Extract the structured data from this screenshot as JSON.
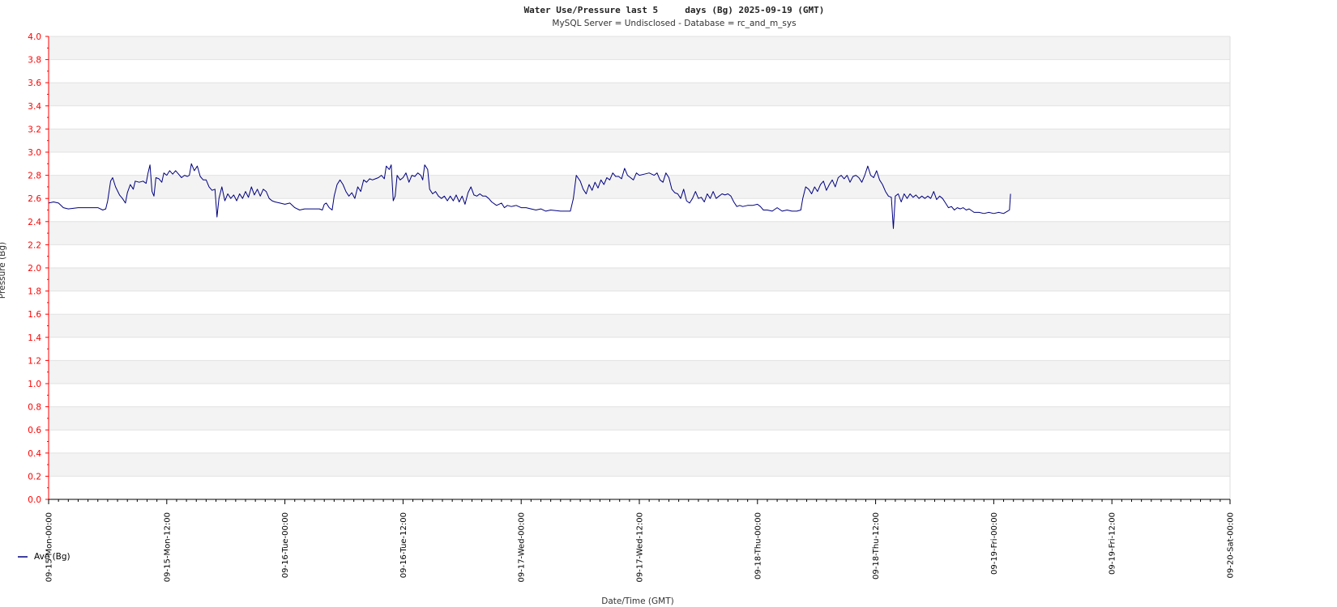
{
  "chart_data": {
    "type": "line",
    "title": "Water Use/Pressure last 5     days (Bg) 2025-09-19 (GMT)",
    "subtitle": "MySQL Server = Undisclosed - Database = rc_and_m_sys",
    "xlabel": "Date/Time (GMT)",
    "ylabel": "Pressure (Bg)",
    "ylim": [
      0,
      4
    ],
    "yticks": [
      "0.0",
      "0.2",
      "0.4",
      "0.6",
      "0.8",
      "1.0",
      "1.2",
      "1.4",
      "1.6",
      "1.8",
      "2.0",
      "2.2",
      "2.4",
      "2.6",
      "2.8",
      "3.0",
      "3.2",
      "3.4",
      "3.6",
      "3.8",
      "4.0"
    ],
    "x_range_hours": [
      0,
      120
    ],
    "xticks": [
      {
        "hour": 0,
        "label": "09-15-Mon-00:00"
      },
      {
        "hour": 12,
        "label": "09-15-Mon-12:00"
      },
      {
        "hour": 24,
        "label": "09-16-Tue-00:00"
      },
      {
        "hour": 36,
        "label": "09-16-Tue-12:00"
      },
      {
        "hour": 48,
        "label": "09-17-Wed-00:00"
      },
      {
        "hour": 60,
        "label": "09-17-Wed-12:00"
      },
      {
        "hour": 72,
        "label": "09-18-Thu-00:00"
      },
      {
        "hour": 84,
        "label": "09-18-Thu-12:00"
      },
      {
        "hour": 96,
        "label": "09-19-Fri-00:00"
      },
      {
        "hour": 108,
        "label": "09-19-Fri-12:00"
      },
      {
        "hour": 120,
        "label": "09-20-Sat-00:00"
      }
    ],
    "grid": true,
    "legend_position": "bottom-left",
    "series": [
      {
        "name": "Ave (Bg)",
        "color": "#000080",
        "points": [
          [
            0.0,
            2.56
          ],
          [
            0.5,
            2.57
          ],
          [
            1.0,
            2.56
          ],
          [
            1.5,
            2.52
          ],
          [
            2.0,
            2.51
          ],
          [
            3.0,
            2.52
          ],
          [
            4.0,
            2.52
          ],
          [
            5.0,
            2.52
          ],
          [
            5.5,
            2.5
          ],
          [
            5.8,
            2.51
          ],
          [
            6.0,
            2.58
          ],
          [
            6.3,
            2.75
          ],
          [
            6.5,
            2.78
          ],
          [
            6.8,
            2.7
          ],
          [
            7.2,
            2.63
          ],
          [
            7.5,
            2.6
          ],
          [
            7.8,
            2.56
          ],
          [
            8.0,
            2.65
          ],
          [
            8.3,
            2.72
          ],
          [
            8.6,
            2.68
          ],
          [
            8.8,
            2.75
          ],
          [
            9.2,
            2.74
          ],
          [
            9.6,
            2.75
          ],
          [
            9.9,
            2.73
          ],
          [
            10.1,
            2.82
          ],
          [
            10.3,
            2.89
          ],
          [
            10.5,
            2.66
          ],
          [
            10.7,
            2.62
          ],
          [
            10.9,
            2.78
          ],
          [
            11.2,
            2.77
          ],
          [
            11.5,
            2.74
          ],
          [
            11.7,
            2.82
          ],
          [
            12.0,
            2.8
          ],
          [
            12.3,
            2.84
          ],
          [
            12.6,
            2.81
          ],
          [
            12.9,
            2.84
          ],
          [
            13.2,
            2.81
          ],
          [
            13.5,
            2.78
          ],
          [
            13.8,
            2.8
          ],
          [
            14.1,
            2.79
          ],
          [
            14.3,
            2.8
          ],
          [
            14.5,
            2.9
          ],
          [
            14.8,
            2.84
          ],
          [
            15.1,
            2.88
          ],
          [
            15.4,
            2.79
          ],
          [
            15.7,
            2.76
          ],
          [
            16.0,
            2.76
          ],
          [
            16.3,
            2.7
          ],
          [
            16.6,
            2.67
          ],
          [
            16.9,
            2.68
          ],
          [
            17.1,
            2.44
          ],
          [
            17.3,
            2.6
          ],
          [
            17.6,
            2.7
          ],
          [
            17.9,
            2.58
          ],
          [
            18.2,
            2.64
          ],
          [
            18.5,
            2.6
          ],
          [
            18.8,
            2.63
          ],
          [
            19.1,
            2.58
          ],
          [
            19.4,
            2.64
          ],
          [
            19.7,
            2.6
          ],
          [
            20.0,
            2.66
          ],
          [
            20.3,
            2.61
          ],
          [
            20.6,
            2.7
          ],
          [
            20.9,
            2.63
          ],
          [
            21.2,
            2.68
          ],
          [
            21.5,
            2.62
          ],
          [
            21.8,
            2.68
          ],
          [
            22.1,
            2.66
          ],
          [
            22.4,
            2.6
          ],
          [
            22.7,
            2.58
          ],
          [
            23.0,
            2.57
          ],
          [
            23.5,
            2.56
          ],
          [
            24.0,
            2.55
          ],
          [
            24.5,
            2.56
          ],
          [
            25.0,
            2.52
          ],
          [
            25.5,
            2.5
          ],
          [
            26.0,
            2.51
          ],
          [
            27.0,
            2.51
          ],
          [
            27.5,
            2.51
          ],
          [
            27.8,
            2.5
          ],
          [
            28.0,
            2.55
          ],
          [
            28.2,
            2.56
          ],
          [
            28.5,
            2.52
          ],
          [
            28.8,
            2.5
          ],
          [
            29.0,
            2.62
          ],
          [
            29.3,
            2.72
          ],
          [
            29.6,
            2.76
          ],
          [
            29.9,
            2.72
          ],
          [
            30.2,
            2.66
          ],
          [
            30.5,
            2.62
          ],
          [
            30.8,
            2.65
          ],
          [
            31.1,
            2.6
          ],
          [
            31.4,
            2.7
          ],
          [
            31.7,
            2.66
          ],
          [
            32.0,
            2.76
          ],
          [
            32.3,
            2.74
          ],
          [
            32.6,
            2.77
          ],
          [
            32.9,
            2.76
          ],
          [
            33.2,
            2.77
          ],
          [
            33.5,
            2.78
          ],
          [
            33.8,
            2.8
          ],
          [
            34.1,
            2.77
          ],
          [
            34.3,
            2.88
          ],
          [
            34.6,
            2.85
          ],
          [
            34.8,
            2.89
          ],
          [
            35.0,
            2.58
          ],
          [
            35.2,
            2.62
          ],
          [
            35.4,
            2.8
          ],
          [
            35.7,
            2.76
          ],
          [
            36.0,
            2.78
          ],
          [
            36.3,
            2.82
          ],
          [
            36.6,
            2.74
          ],
          [
            36.9,
            2.8
          ],
          [
            37.2,
            2.79
          ],
          [
            37.5,
            2.82
          ],
          [
            37.8,
            2.8
          ],
          [
            38.0,
            2.76
          ],
          [
            38.2,
            2.89
          ],
          [
            38.5,
            2.85
          ],
          [
            38.7,
            2.68
          ],
          [
            39.0,
            2.64
          ],
          [
            39.3,
            2.66
          ],
          [
            39.6,
            2.62
          ],
          [
            39.9,
            2.6
          ],
          [
            40.2,
            2.62
          ],
          [
            40.5,
            2.58
          ],
          [
            40.8,
            2.62
          ],
          [
            41.1,
            2.58
          ],
          [
            41.4,
            2.63
          ],
          [
            41.7,
            2.57
          ],
          [
            42.0,
            2.62
          ],
          [
            42.3,
            2.55
          ],
          [
            42.6,
            2.65
          ],
          [
            42.9,
            2.7
          ],
          [
            43.2,
            2.63
          ],
          [
            43.5,
            2.62
          ],
          [
            43.8,
            2.64
          ],
          [
            44.1,
            2.62
          ],
          [
            44.4,
            2.62
          ],
          [
            44.7,
            2.6
          ],
          [
            45.0,
            2.57
          ],
          [
            45.5,
            2.54
          ],
          [
            46.0,
            2.56
          ],
          [
            46.3,
            2.52
          ],
          [
            46.6,
            2.54
          ],
          [
            47.0,
            2.53
          ],
          [
            47.5,
            2.54
          ],
          [
            48.0,
            2.52
          ],
          [
            48.5,
            2.52
          ],
          [
            49.0,
            2.51
          ],
          [
            49.5,
            2.5
          ],
          [
            50.0,
            2.51
          ],
          [
            50.5,
            2.49
          ],
          [
            51.0,
            2.5
          ],
          [
            52.0,
            2.49
          ],
          [
            53.0,
            2.49
          ],
          [
            53.3,
            2.6
          ],
          [
            53.6,
            2.8
          ],
          [
            54.0,
            2.75
          ],
          [
            54.3,
            2.68
          ],
          [
            54.6,
            2.64
          ],
          [
            54.9,
            2.72
          ],
          [
            55.2,
            2.67
          ],
          [
            55.5,
            2.74
          ],
          [
            55.8,
            2.69
          ],
          [
            56.1,
            2.76
          ],
          [
            56.4,
            2.72
          ],
          [
            56.7,
            2.78
          ],
          [
            57.0,
            2.76
          ],
          [
            57.3,
            2.82
          ],
          [
            57.6,
            2.79
          ],
          [
            57.9,
            2.79
          ],
          [
            58.2,
            2.77
          ],
          [
            58.5,
            2.86
          ],
          [
            58.8,
            2.8
          ],
          [
            59.1,
            2.78
          ],
          [
            59.4,
            2.76
          ],
          [
            59.7,
            2.82
          ],
          [
            60.0,
            2.8
          ],
          [
            60.5,
            2.81
          ],
          [
            61.0,
            2.82
          ],
          [
            61.5,
            2.8
          ],
          [
            61.8,
            2.82
          ],
          [
            62.1,
            2.76
          ],
          [
            62.4,
            2.74
          ],
          [
            62.7,
            2.82
          ],
          [
            63.0,
            2.78
          ],
          [
            63.3,
            2.68
          ],
          [
            63.6,
            2.65
          ],
          [
            63.9,
            2.64
          ],
          [
            64.2,
            2.6
          ],
          [
            64.5,
            2.68
          ],
          [
            64.8,
            2.58
          ],
          [
            65.1,
            2.56
          ],
          [
            65.4,
            2.6
          ],
          [
            65.7,
            2.66
          ],
          [
            66.0,
            2.6
          ],
          [
            66.3,
            2.61
          ],
          [
            66.6,
            2.57
          ],
          [
            66.9,
            2.64
          ],
          [
            67.2,
            2.6
          ],
          [
            67.5,
            2.66
          ],
          [
            67.8,
            2.6
          ],
          [
            68.1,
            2.62
          ],
          [
            68.4,
            2.64
          ],
          [
            68.7,
            2.63
          ],
          [
            69.0,
            2.64
          ],
          [
            69.3,
            2.62
          ],
          [
            69.6,
            2.57
          ],
          [
            69.9,
            2.53
          ],
          [
            70.2,
            2.54
          ],
          [
            70.5,
            2.53
          ],
          [
            71.0,
            2.54
          ],
          [
            71.5,
            2.54
          ],
          [
            72.0,
            2.55
          ],
          [
            72.3,
            2.53
          ],
          [
            72.6,
            2.5
          ],
          [
            73.0,
            2.5
          ],
          [
            73.5,
            2.49
          ],
          [
            74.0,
            2.52
          ],
          [
            74.5,
            2.49
          ],
          [
            75.0,
            2.5
          ],
          [
            75.5,
            2.49
          ],
          [
            76.0,
            2.49
          ],
          [
            76.4,
            2.5
          ],
          [
            76.6,
            2.6
          ],
          [
            76.9,
            2.7
          ],
          [
            77.2,
            2.68
          ],
          [
            77.5,
            2.64
          ],
          [
            77.8,
            2.7
          ],
          [
            78.1,
            2.66
          ],
          [
            78.4,
            2.72
          ],
          [
            78.7,
            2.75
          ],
          [
            79.0,
            2.67
          ],
          [
            79.3,
            2.72
          ],
          [
            79.6,
            2.76
          ],
          [
            79.9,
            2.7
          ],
          [
            80.2,
            2.78
          ],
          [
            80.5,
            2.8
          ],
          [
            80.8,
            2.77
          ],
          [
            81.1,
            2.8
          ],
          [
            81.4,
            2.74
          ],
          [
            81.7,
            2.79
          ],
          [
            82.0,
            2.8
          ],
          [
            82.3,
            2.78
          ],
          [
            82.6,
            2.74
          ],
          [
            82.9,
            2.8
          ],
          [
            83.2,
            2.88
          ],
          [
            83.5,
            2.8
          ],
          [
            83.8,
            2.78
          ],
          [
            84.1,
            2.84
          ],
          [
            84.4,
            2.76
          ],
          [
            84.7,
            2.72
          ],
          [
            85.0,
            2.66
          ],
          [
            85.3,
            2.62
          ],
          [
            85.6,
            2.61
          ],
          [
            85.8,
            2.34
          ],
          [
            86.0,
            2.62
          ],
          [
            86.3,
            2.64
          ],
          [
            86.6,
            2.57
          ],
          [
            86.9,
            2.64
          ],
          [
            87.2,
            2.6
          ],
          [
            87.5,
            2.64
          ],
          [
            87.8,
            2.61
          ],
          [
            88.1,
            2.63
          ],
          [
            88.4,
            2.6
          ],
          [
            88.7,
            2.62
          ],
          [
            89.0,
            2.6
          ],
          [
            89.3,
            2.62
          ],
          [
            89.6,
            2.6
          ],
          [
            89.9,
            2.66
          ],
          [
            90.2,
            2.59
          ],
          [
            90.5,
            2.62
          ],
          [
            90.8,
            2.6
          ],
          [
            91.1,
            2.56
          ],
          [
            91.4,
            2.52
          ],
          [
            91.7,
            2.53
          ],
          [
            92.0,
            2.5
          ],
          [
            92.3,
            2.52
          ],
          [
            92.6,
            2.51
          ],
          [
            92.9,
            2.52
          ],
          [
            93.2,
            2.5
          ],
          [
            93.5,
            2.51
          ],
          [
            94.0,
            2.48
          ],
          [
            94.5,
            2.48
          ],
          [
            95.0,
            2.47
          ],
          [
            95.5,
            2.48
          ],
          [
            96.0,
            2.47
          ],
          [
            96.5,
            2.48
          ],
          [
            97.0,
            2.47
          ],
          [
            97.4,
            2.49
          ],
          [
            97.6,
            2.5
          ],
          [
            97.7,
            2.64
          ]
        ]
      }
    ]
  }
}
